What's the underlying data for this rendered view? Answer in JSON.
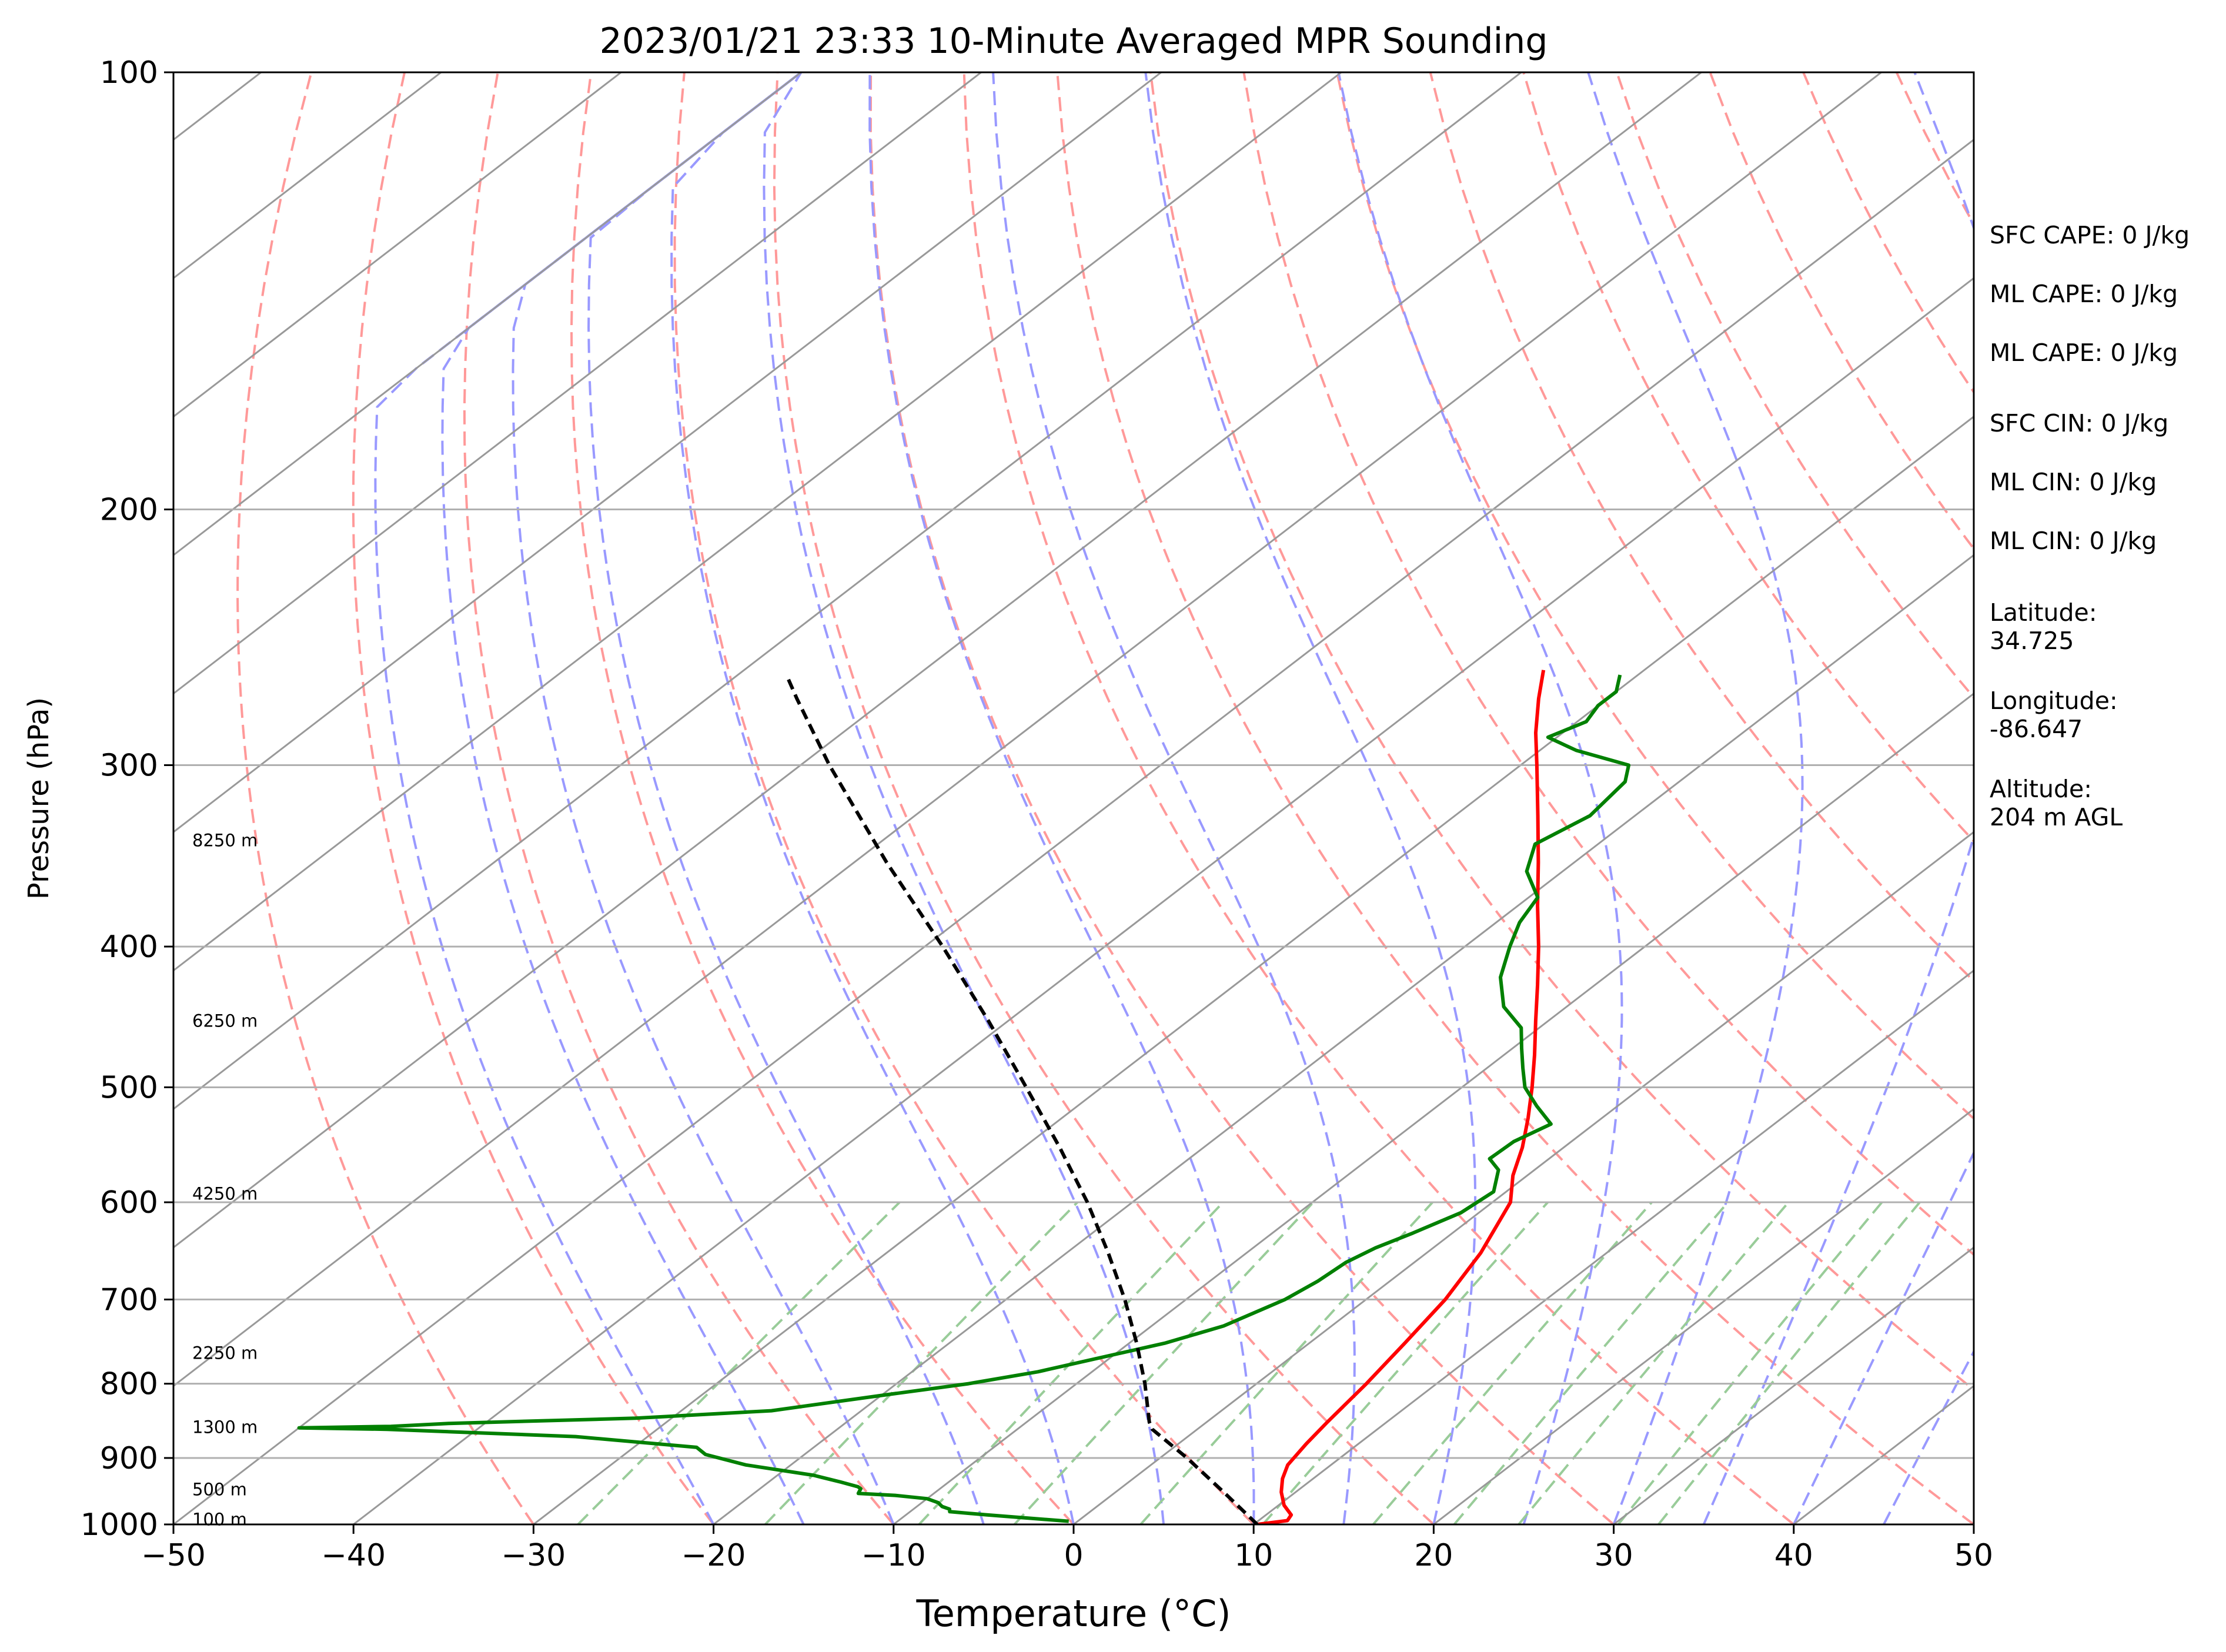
{
  "chart_data": {
    "type": "line",
    "title": "2023/01/21 23:33 10-Minute Averaged MPR Sounding",
    "xlabel": "Temperature (°C)",
    "ylabel": "Pressure (hPa)",
    "xlim": [
      -50,
      50
    ],
    "ylim": [
      1000,
      100
    ],
    "y_scale": "log",
    "skew": true,
    "x_ticks": [
      "−50",
      "−40",
      "−30",
      "−20",
      "−10",
      "0",
      "10",
      "20",
      "30",
      "40",
      "50"
    ],
    "y_ticks": [
      "100",
      "200",
      "300",
      "400",
      "500",
      "600",
      "700",
      "800",
      "900",
      "1000"
    ],
    "grid": true,
    "series": [
      {
        "role": "temperature",
        "color": "#ff0000",
        "style": "solid",
        "points": [
          [
            1000,
            10.2
          ],
          [
            994,
            11.6
          ],
          [
            985,
            11.4
          ],
          [
            970,
            10.3
          ],
          [
            950,
            9.2
          ],
          [
            930,
            8.3
          ],
          [
            910,
            7.6
          ],
          [
            880,
            7.1
          ],
          [
            850,
            6.7
          ],
          [
            800,
            6.1
          ],
          [
            750,
            5.3
          ],
          [
            700,
            4.4
          ],
          [
            650,
            3.0
          ],
          [
            600,
            1.0
          ],
          [
            575,
            -0.8
          ],
          [
            550,
            -2.3
          ],
          [
            525,
            -4.1
          ],
          [
            500,
            -6.1
          ],
          [
            475,
            -8.3
          ],
          [
            450,
            -10.7
          ],
          [
            425,
            -13.2
          ],
          [
            400,
            -15.9
          ],
          [
            375,
            -18.9
          ],
          [
            350,
            -22.0
          ],
          [
            325,
            -25.4
          ],
          [
            300,
            -29.1
          ],
          [
            285,
            -31.5
          ],
          [
            270,
            -33.8
          ],
          [
            258,
            -35.6
          ]
        ]
      },
      {
        "role": "dewpoint",
        "color": "#008000",
        "style": "solid",
        "points": [
          [
            995,
            -0.5
          ],
          [
            985,
            -5.5
          ],
          [
            980,
            -7.8
          ],
          [
            976,
            -8.0
          ],
          [
            972,
            -8.6
          ],
          [
            966,
            -9.1
          ],
          [
            960,
            -10.0
          ],
          [
            955,
            -12.0
          ],
          [
            952,
            -14.2
          ],
          [
            945,
            -14.4
          ],
          [
            942,
            -14.7
          ],
          [
            935,
            -16.0
          ],
          [
            925,
            -18.0
          ],
          [
            910,
            -22.5
          ],
          [
            895,
            -25.5
          ],
          [
            885,
            -26.5
          ],
          [
            870,
            -34.0
          ],
          [
            860,
            -45.0
          ],
          [
            858,
            -50.0
          ],
          [
            856,
            -45.0
          ],
          [
            852,
            -42.0
          ],
          [
            845,
            -32.0
          ],
          [
            835,
            -25.0
          ],
          [
            815,
            -20.0
          ],
          [
            800,
            -16.0
          ],
          [
            785,
            -13.0
          ],
          [
            750,
            -8.0
          ],
          [
            730,
            -6.0
          ],
          [
            700,
            -4.5
          ],
          [
            680,
            -4.0
          ],
          [
            660,
            -3.8
          ],
          [
            645,
            -3.2
          ],
          [
            630,
            -2.2
          ],
          [
            610,
            -1.0
          ],
          [
            590,
            -0.7
          ],
          [
            570,
            -2.0
          ],
          [
            560,
            -3.3
          ],
          [
            545,
            -3.2
          ],
          [
            530,
            -2.4
          ],
          [
            515,
            -4.5
          ],
          [
            500,
            -6.5
          ],
          [
            485,
            -8.0
          ],
          [
            470,
            -9.5
          ],
          [
            455,
            -11.0
          ],
          [
            440,
            -13.5
          ],
          [
            420,
            -15.8
          ],
          [
            400,
            -17.5
          ],
          [
            385,
            -18.7
          ],
          [
            370,
            -19.5
          ],
          [
            355,
            -22.0
          ],
          [
            340,
            -23.5
          ],
          [
            325,
            -22.5
          ],
          [
            308,
            -23.0
          ],
          [
            300,
            -24.0
          ],
          [
            293,
            -28.0
          ],
          [
            287,
            -30.5
          ],
          [
            280,
            -29.5
          ],
          [
            273,
            -30.0
          ],
          [
            267,
            -30.0
          ],
          [
            260,
            -31.0
          ]
        ]
      },
      {
        "role": "parcel",
        "color": "#000000",
        "style": "dashed",
        "points": [
          [
            1000,
            10.2
          ],
          [
            950,
            6.0
          ],
          [
            900,
            1.5
          ],
          [
            860,
            -2.5
          ],
          [
            850,
            -3.2
          ],
          [
            800,
            -6.2
          ],
          [
            750,
            -9.6
          ],
          [
            700,
            -13.4
          ],
          [
            650,
            -17.7
          ],
          [
            600,
            -22.5
          ],
          [
            550,
            -28.0
          ],
          [
            500,
            -34.2
          ],
          [
            450,
            -41.1
          ],
          [
            400,
            -49.0
          ],
          [
            350,
            -58.2
          ],
          [
            300,
            -68.4
          ],
          [
            270,
            -75.0
          ],
          [
            260,
            -77.3
          ]
        ]
      }
    ],
    "height_labels": [
      {
        "text": "100 m",
        "pressure": 992
      },
      {
        "text": "500 m",
        "pressure": 946
      },
      {
        "text": "1300 m",
        "pressure": 857
      },
      {
        "text": "2250 m",
        "pressure": 762
      },
      {
        "text": "4250 m",
        "pressure": 592
      },
      {
        "text": "6250 m",
        "pressure": 450
      },
      {
        "text": "8250 m",
        "pressure": 338
      }
    ],
    "indices": [
      {
        "label": "SFC CAPE: 0 J/kg"
      },
      {
        "label": "ML CAPE: 0 J/kg"
      },
      {
        "label": "ML CAPE: 0 J/kg"
      },
      {
        "label": "SFC CIN: 0 J/kg"
      },
      {
        "label": "ML CIN: 0 J/kg"
      },
      {
        "label": "ML CIN: 0 J/kg"
      }
    ],
    "location": {
      "latitude_label": "Latitude:",
      "latitude": "34.725",
      "longitude_label": "Longitude:",
      "longitude": "-86.647",
      "altitude_label": "Altitude:",
      "altitude": "204 m AGL"
    },
    "colors": {
      "dry_adiabats": "#ff9999",
      "moist_adiabats": "#9999ff",
      "mixing_ratio": "#99cc99",
      "isotherms": "#999999",
      "isobars": "#b0b0b0"
    }
  }
}
